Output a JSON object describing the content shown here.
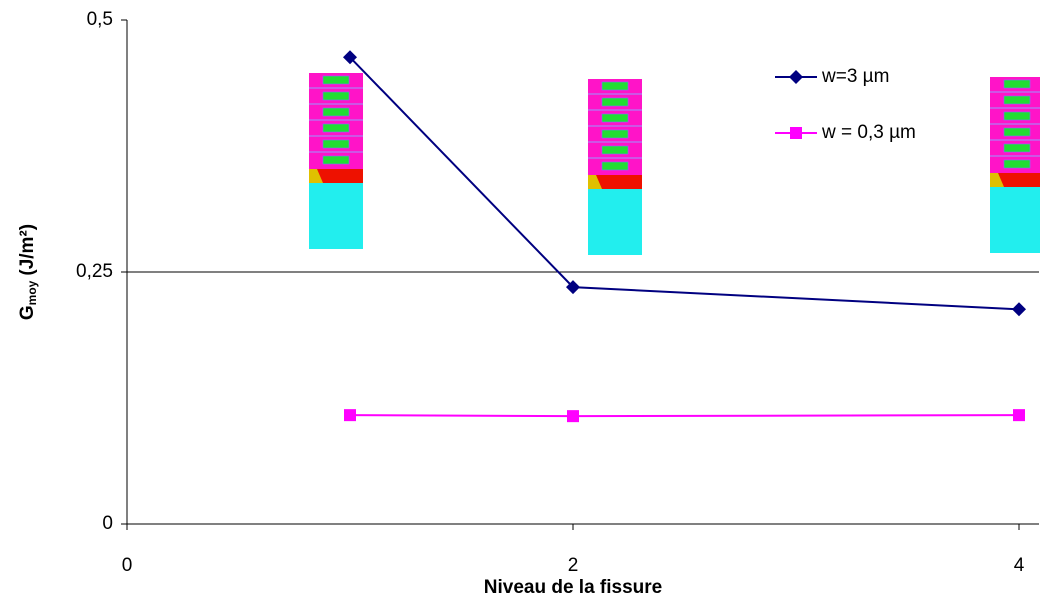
{
  "chart_data": {
    "type": "line",
    "x_label": "Niveau de la fissure",
    "y_label": {
      "main": "G",
      "sub": "moy",
      "unit": "(J/m²)"
    },
    "x": [
      1,
      2,
      4
    ],
    "series": [
      {
        "name": "w=3 µm",
        "color": "#000080",
        "marker": "diamond",
        "values": [
          0.463,
          0.235,
          0.213
        ]
      },
      {
        "name": "w = 0,3 µm",
        "color": "#ff00ff",
        "marker": "square",
        "values": [
          0.108,
          0.107,
          0.108
        ]
      }
    ],
    "xlim": [
      0,
      4
    ],
    "xticks": [
      0,
      2,
      4
    ],
    "ylim": [
      0,
      0.5
    ],
    "yticks": [
      0,
      {
        "value": 0.25,
        "label": "0,25"
      },
      {
        "value": 0.5,
        "label": "0,5"
      }
    ],
    "grid": true
  }
}
